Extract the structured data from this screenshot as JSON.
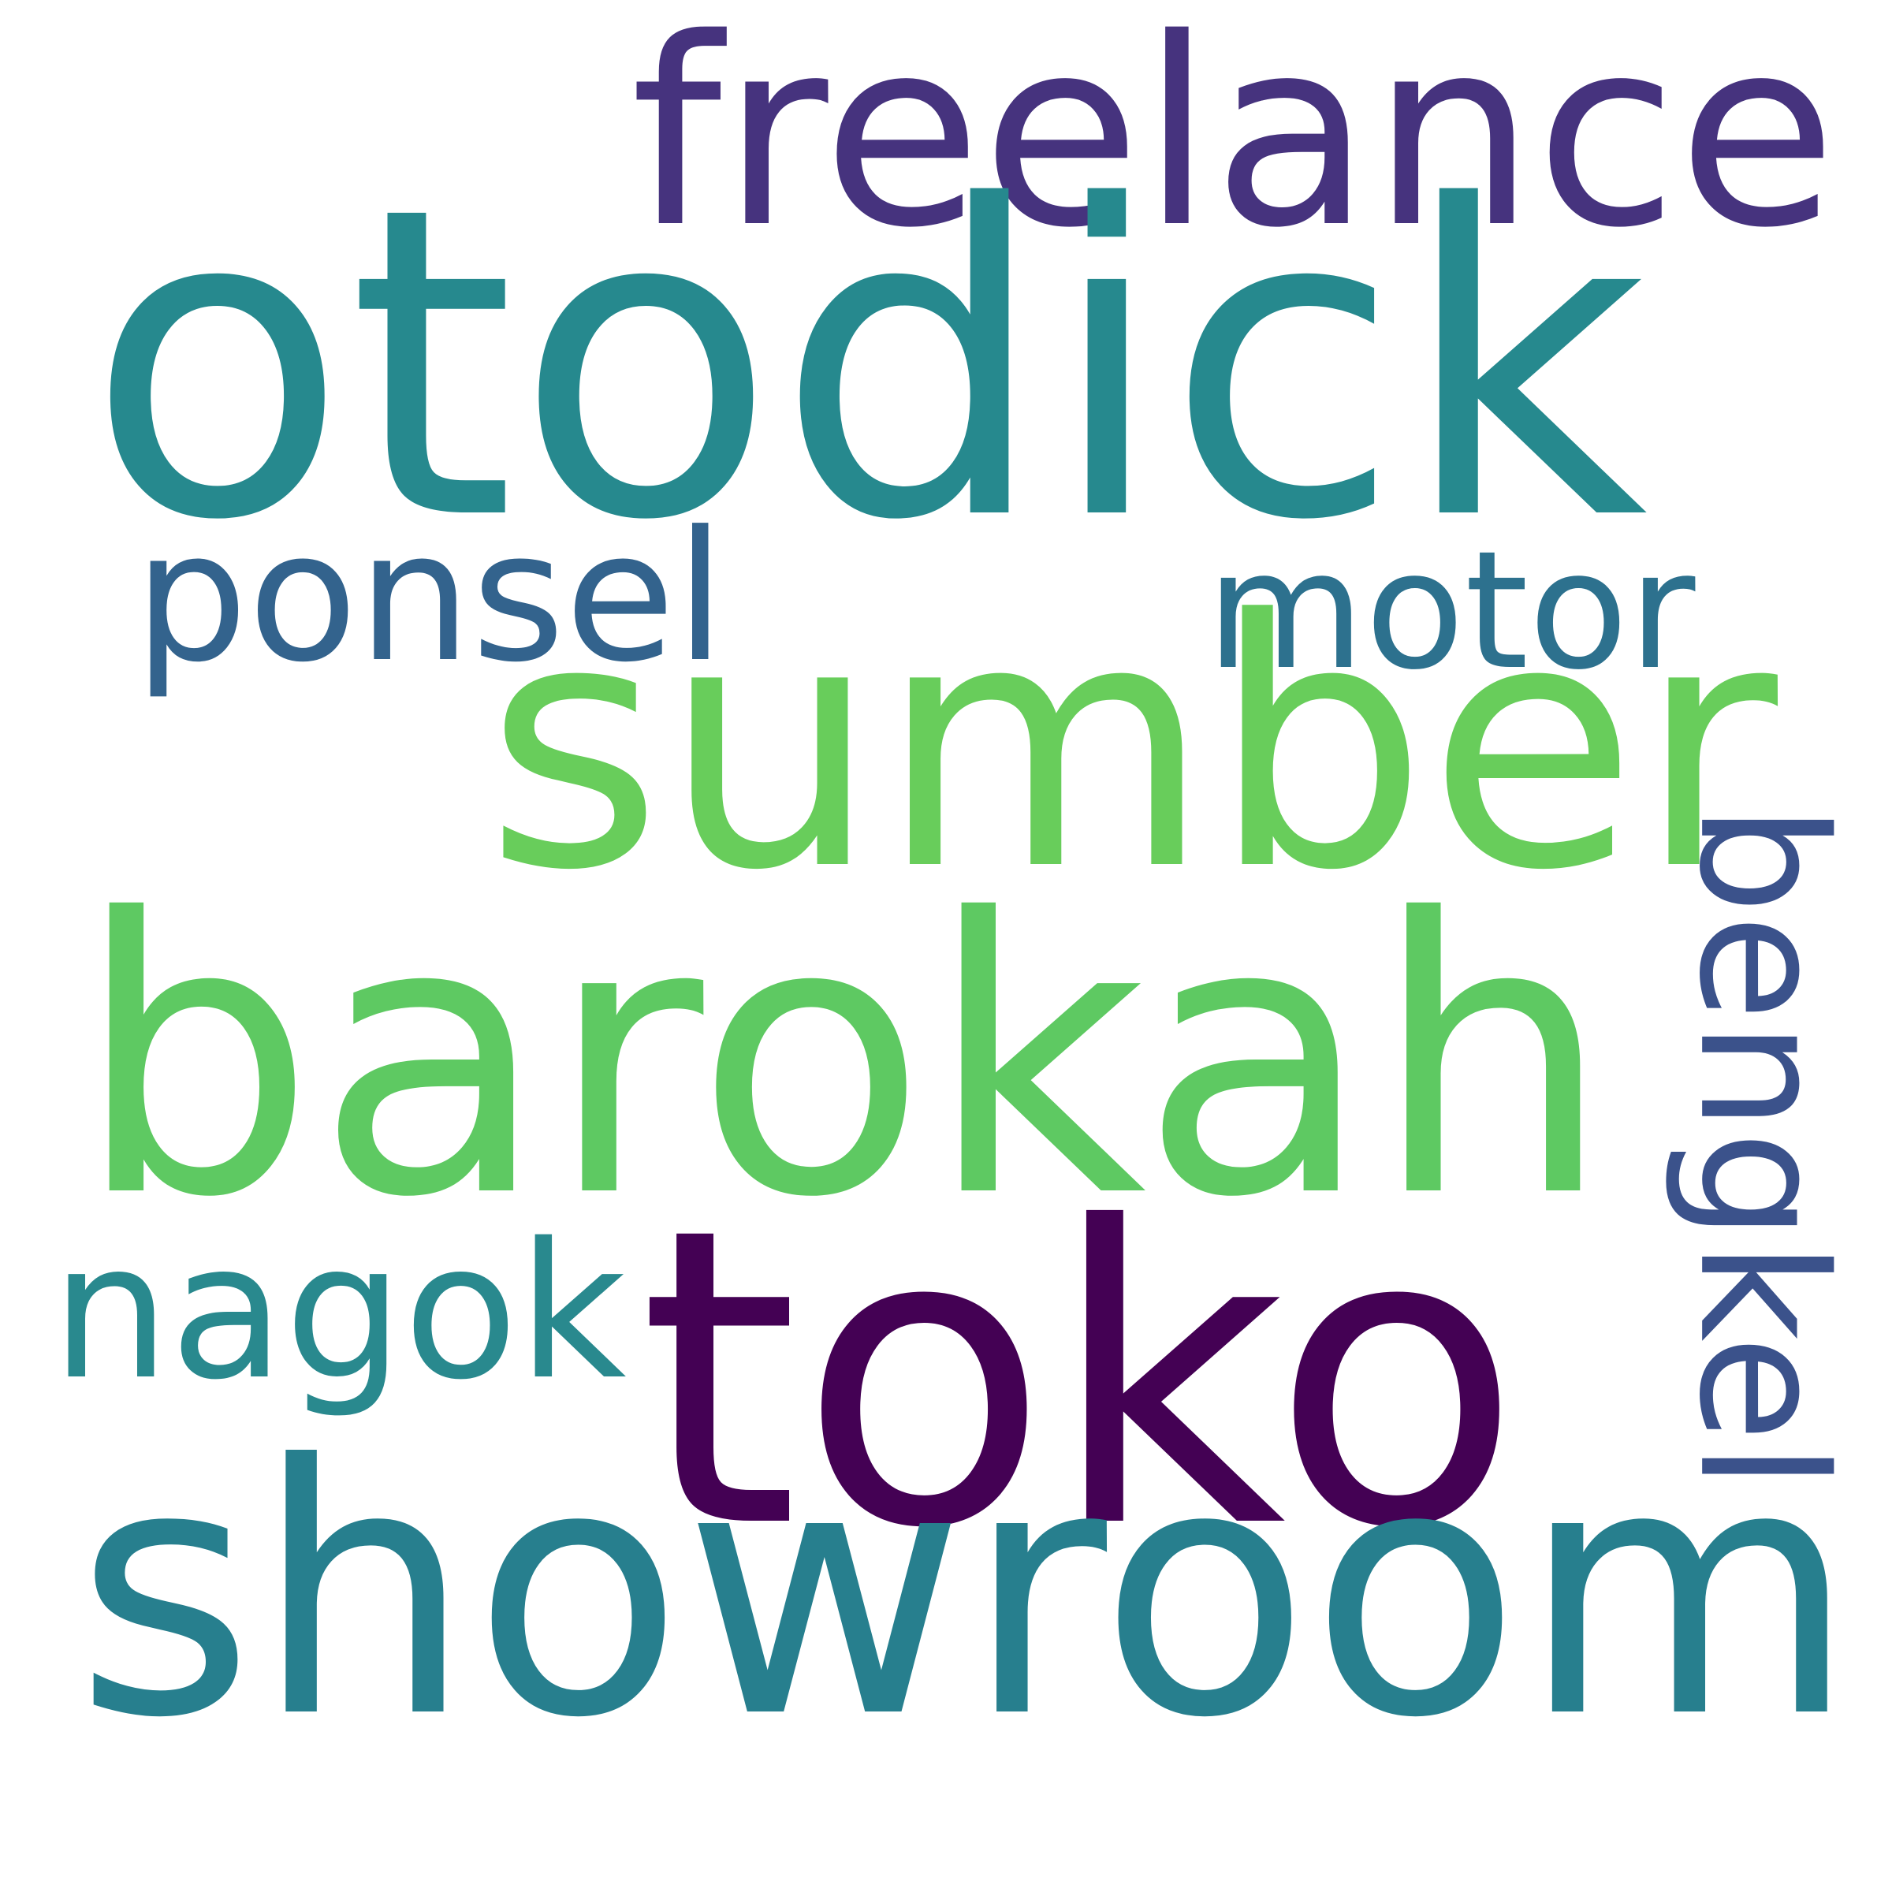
{
  "words": [
    {
      "key": "freelance",
      "text": "freelance",
      "color": "#46337e",
      "rotation": 0
    },
    {
      "key": "otodick",
      "text": "otodick",
      "color": "#26898e",
      "rotation": 0
    },
    {
      "key": "ponsel",
      "text": "ponsel",
      "color": "#33638d",
      "rotation": 0
    },
    {
      "key": "motor",
      "text": "motor",
      "color": "#2d718e",
      "rotation": 0
    },
    {
      "key": "sumber",
      "text": "sumber",
      "color": "#68cd5b",
      "rotation": 0
    },
    {
      "key": "bengkel",
      "text": "bengkel",
      "color": "#3b528b",
      "rotation": 90
    },
    {
      "key": "barokah",
      "text": "barokah",
      "color": "#5ec962",
      "rotation": 0
    },
    {
      "key": "nagok",
      "text": "nagok",
      "color": "#29898e",
      "rotation": 0
    },
    {
      "key": "toko",
      "text": "toko",
      "color": "#440154",
      "rotation": 0
    },
    {
      "key": "showroom",
      "text": "showroom",
      "color": "#277f8e",
      "rotation": 0
    }
  ]
}
